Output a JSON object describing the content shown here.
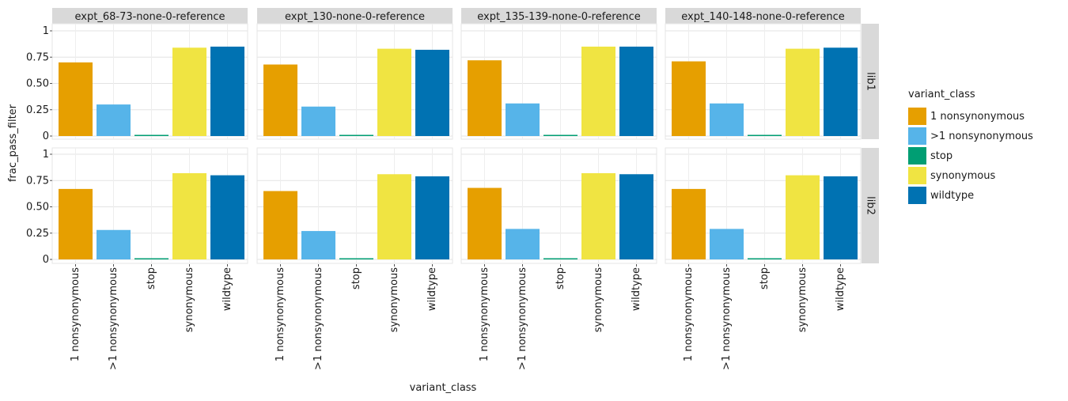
{
  "chart_data": {
    "type": "bar",
    "xlabel": "variant_class",
    "ylabel": "frac_pass_filter",
    "ylim": [
      0,
      1
    ],
    "yticks": [
      0,
      0.25,
      0.5,
      0.75,
      1
    ],
    "ytick_labels": [
      "0",
      "0.25",
      "0.50",
      "0.75",
      "1"
    ],
    "grid": true,
    "categories": [
      "1 nonsynonymous",
      ">1 nonsynonymous",
      "stop",
      "synonymous",
      "wildtype"
    ],
    "colors": [
      "#E69F00",
      "#56B4E9",
      "#009E73",
      "#F0E442",
      "#0072B2"
    ],
    "columns": [
      "expt_68-73-none-0-reference",
      "expt_130-none-0-reference",
      "expt_135-139-none-0-reference",
      "expt_140-148-none-0-reference"
    ],
    "rows": [
      "lib1",
      "lib2"
    ],
    "panels": [
      {
        "column": "expt_68-73-none-0-reference",
        "row": "lib1",
        "values": [
          0.7,
          0.3,
          0.01,
          0.84,
          0.85
        ]
      },
      {
        "column": "expt_130-none-0-reference",
        "row": "lib1",
        "values": [
          0.68,
          0.28,
          0.01,
          0.83,
          0.82
        ]
      },
      {
        "column": "expt_135-139-none-0-reference",
        "row": "lib1",
        "values": [
          0.72,
          0.31,
          0.01,
          0.85,
          0.85
        ]
      },
      {
        "column": "expt_140-148-none-0-reference",
        "row": "lib1",
        "values": [
          0.71,
          0.31,
          0.01,
          0.83,
          0.84
        ]
      },
      {
        "column": "expt_68-73-none-0-reference",
        "row": "lib2",
        "values": [
          0.67,
          0.28,
          0.01,
          0.82,
          0.8
        ]
      },
      {
        "column": "expt_130-none-0-reference",
        "row": "lib2",
        "values": [
          0.65,
          0.27,
          0.01,
          0.81,
          0.79
        ]
      },
      {
        "column": "expt_135-139-none-0-reference",
        "row": "lib2",
        "values": [
          0.68,
          0.29,
          0.01,
          0.82,
          0.81
        ]
      },
      {
        "column": "expt_140-148-none-0-reference",
        "row": "lib2",
        "values": [
          0.67,
          0.29,
          0.01,
          0.8,
          0.79
        ]
      }
    ],
    "legend": {
      "title": "variant_class",
      "position": "right",
      "entries": [
        "1 nonsynonymous",
        ">1 nonsynonymous",
        "stop",
        "synonymous",
        "wildtype"
      ]
    }
  }
}
